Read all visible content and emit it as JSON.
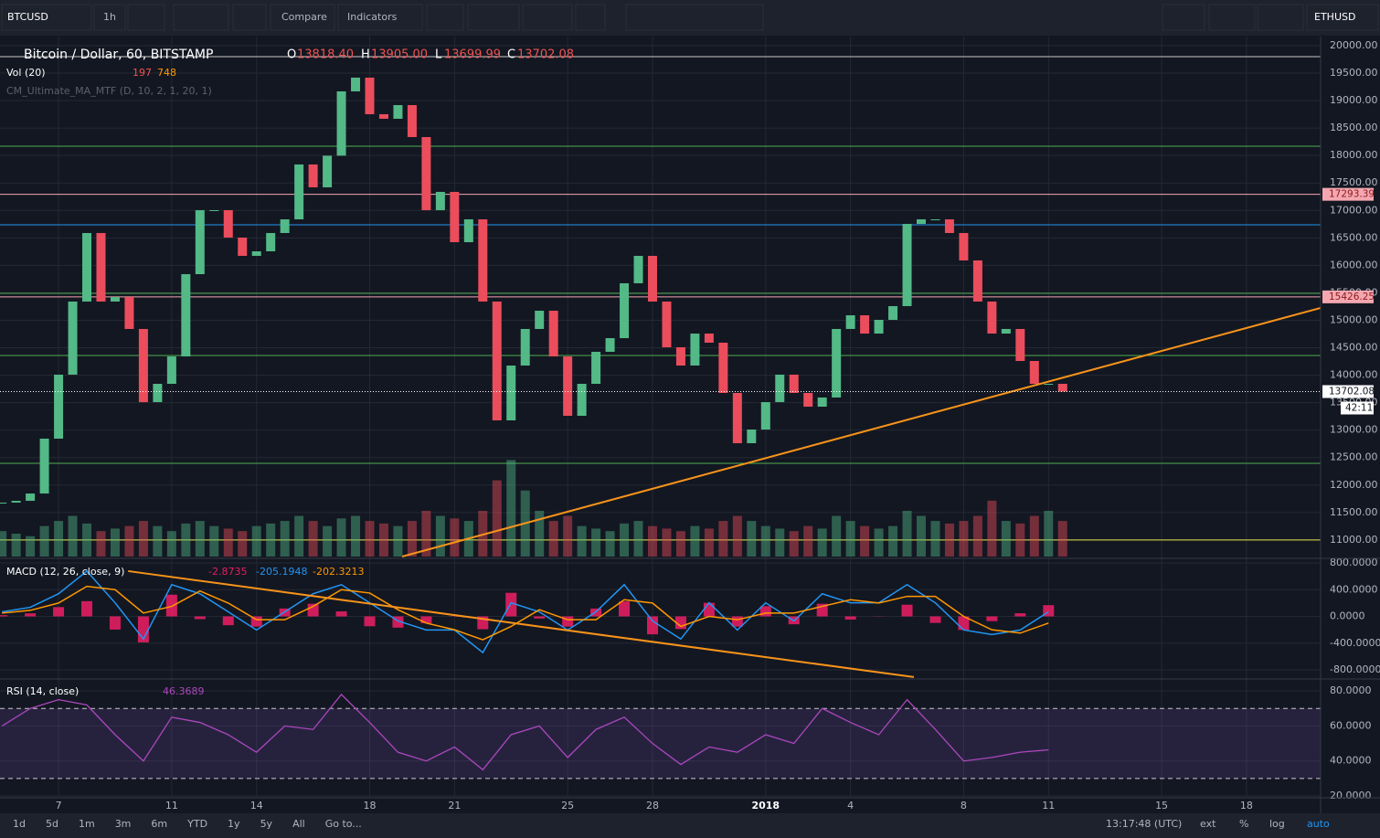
{
  "toolbar": {
    "symbol": "BTCUSD",
    "interval": "1h",
    "compare": "Compare",
    "indicators": "Indicators",
    "symbol2": "ETHUSD"
  },
  "legend": {
    "title": "Bitcoin / Dollar, 60, BITSTAMP",
    "o_key": "O",
    "o": "13818.40",
    "h_key": "H",
    "h": "13905.00",
    "l_key": "L",
    "l": "13699.99",
    "c_key": "C",
    "c": "13702.08",
    "vol": "Vol (20)",
    "vol_a": "197",
    "vol_b": "748",
    "ma": "CM_Ultimate_MA_MTF (D, 10, 2, 1, 20, 1)"
  },
  "chart_data": [
    {
      "type": "candlestick",
      "up_color": "#53b987",
      "down_color": "#eb4d5c",
      "t": [
        4,
        4.5,
        5,
        5.5,
        6,
        6.5,
        7,
        7.5,
        8,
        8.5,
        9,
        9.5,
        10,
        10.5,
        11,
        11.5,
        12,
        12.5,
        13,
        13.5,
        14,
        14.5,
        15,
        15.5,
        16,
        16.5,
        17,
        17.5,
        18,
        18.5,
        19,
        19.5,
        20,
        20.5,
        21,
        21.5,
        22,
        22.5,
        23,
        23.5,
        24,
        24.5,
        25,
        25.5,
        26,
        26.5,
        27,
        27.5,
        28,
        28.5,
        29,
        29.5,
        30,
        30.5,
        31,
        31.5,
        32,
        32.5,
        33,
        33.5,
        34,
        34.5,
        35,
        35.5,
        36,
        36.5,
        37,
        37.5,
        38,
        38.5,
        39,
        39.5,
        40,
        40.5,
        41,
        41.5
      ],
      "close": [
        11680,
        11713,
        11846,
        12845,
        14010,
        15341,
        16589,
        15341,
        15424,
        14842,
        13510,
        13843,
        14342,
        15840,
        17005,
        17005,
        16506,
        16173,
        16256,
        16589,
        16838,
        17837,
        17421,
        17997,
        19168,
        19418,
        18752,
        18669,
        18918,
        18336,
        17005,
        17338,
        16422,
        16838,
        15341,
        13178,
        14176,
        14842,
        15174,
        14342,
        13261,
        13843,
        14426,
        14675,
        15674,
        16173,
        15341,
        14509,
        14176,
        14758,
        14592,
        13677,
        12762,
        13011,
        13510,
        14010,
        13677,
        13427,
        13594,
        14842,
        15091,
        14758,
        15008,
        15258,
        16755,
        16838,
        16838,
        16589,
        16090,
        15341,
        14758,
        14842,
        14259,
        13843,
        13843,
        13702.08
      ],
      "volume": [
        500,
        450,
        400,
        600,
        700,
        800,
        650,
        500,
        550,
        600,
        700,
        600,
        500,
        650,
        700,
        600,
        550,
        500,
        600,
        650,
        700,
        800,
        700,
        600,
        750,
        800,
        700,
        650,
        600,
        700,
        900,
        800,
        750,
        700,
        900,
        1500,
        1900,
        1300,
        900,
        700,
        800,
        600,
        550,
        500,
        650,
        700,
        600,
        550,
        500,
        600,
        550,
        700,
        800,
        700,
        600,
        550,
        500,
        600,
        550,
        800,
        700,
        600,
        550,
        600,
        900,
        800,
        700,
        650,
        700,
        800,
        1100,
        700,
        650,
        800,
        900,
        700
      ],
      "vol_lim": [
        0,
        2500
      ],
      "ylim": [
        10682,
        20166
      ],
      "xlim": [
        3.93,
        50.62
      ],
      "yticks": [
        {
          "value": 11000,
          "label": "11000.00"
        },
        {
          "value": 11500,
          "label": "11500.00"
        },
        {
          "value": 12000,
          "label": "12000.00"
        },
        {
          "value": 12500,
          "label": "12500.00"
        },
        {
          "value": 13000,
          "label": "13000.00"
        },
        {
          "value": 13500,
          "label": "13500.00"
        },
        {
          "value": 14000,
          "label": "14000.00"
        },
        {
          "value": 14500,
          "label": "14500.00"
        },
        {
          "value": 15000,
          "label": "15000.00"
        },
        {
          "value": 15500,
          "label": "15500.00"
        },
        {
          "value": 16000,
          "label": "16000.00"
        },
        {
          "value": 16500,
          "label": "16500.00"
        },
        {
          "value": 17000,
          "label": "17000.00"
        },
        {
          "value": 17500,
          "label": "17500.00"
        },
        {
          "value": 18000,
          "label": "18000.00"
        },
        {
          "value": 18500,
          "label": "18500.00"
        },
        {
          "value": 19000,
          "label": "19000.00"
        },
        {
          "value": 19500,
          "label": "19500.00"
        },
        {
          "value": 20000,
          "label": "20000.00"
        }
      ],
      "xticks": [
        {
          "value": 6,
          "label": "7"
        },
        {
          "value": 10,
          "label": "11"
        },
        {
          "value": 13,
          "label": "14"
        },
        {
          "value": 17,
          "label": "18"
        },
        {
          "value": 20,
          "label": "21"
        },
        {
          "value": 24,
          "label": "25"
        },
        {
          "value": 27,
          "label": "28"
        },
        {
          "value": 31,
          "label": "2018"
        },
        {
          "value": 34,
          "label": "4"
        },
        {
          "value": 38,
          "label": "8"
        },
        {
          "value": 41,
          "label": "11"
        },
        {
          "value": 45,
          "label": "15"
        },
        {
          "value": 48,
          "label": "18"
        }
      ],
      "levels": [
        {
          "value": 19800,
          "color": "#c8c8c8"
        },
        {
          "value": 18170,
          "color": "#4caf50"
        },
        {
          "value": 16739,
          "color": "#2196f3"
        },
        {
          "value": 15491,
          "color": "#4caf50"
        },
        {
          "value": 14359,
          "color": "#4caf50"
        },
        {
          "value": 12396,
          "color": "#4caf50"
        },
        {
          "value": 11000,
          "color": "#e6e64d"
        }
      ],
      "marked_levels": [
        {
          "value": 17293.39,
          "color": "#f4a7b0"
        },
        {
          "value": 15426.25,
          "color": "#f4a7b0"
        }
      ],
      "trend": {
        "t": [
          18.15,
          50.62
        ],
        "values": [
          10699,
          15225
        ],
        "color": "#f7931a"
      },
      "last": {
        "value": 13702.08,
        "countdown": "42:11"
      }
    },
    {
      "type": "macd",
      "title": "MACD (12, 26, close, 9)",
      "readouts": [
        "-2.8735",
        "-205.1948",
        "-202.3213"
      ],
      "t": [
        4,
        5,
        6,
        7,
        8,
        9,
        10,
        11,
        12,
        13,
        14,
        15,
        16,
        17,
        18,
        19,
        20,
        21,
        22,
        23,
        24,
        25,
        26,
        27,
        28,
        29,
        30,
        31,
        32,
        33,
        34,
        35,
        36,
        37,
        38,
        39,
        40,
        41
      ],
      "macd": [
        68,
        136,
        339,
        678,
        203,
        -339,
        475,
        339,
        68,
        -203,
        68,
        339,
        475,
        203,
        -68,
        -203,
        -203,
        -542,
        203,
        68,
        -203,
        68,
        475,
        -68,
        -339,
        203,
        -203,
        203,
        -68,
        339,
        203,
        203,
        475,
        203,
        -203,
        -271,
        -203,
        68
      ],
      "signal": [
        50,
        90,
        200,
        450,
        400,
        50,
        150,
        380,
        200,
        -50,
        -50,
        150,
        400,
        350,
        100,
        -100,
        -200,
        -350,
        -150,
        100,
        -50,
        -50,
        250,
        200,
        -150,
        0,
        -50,
        50,
        50,
        150,
        250,
        200,
        300,
        300,
        0,
        -200,
        -250,
        -100
      ],
      "macd_color": "#2196f3",
      "signal_color": "#ff9800",
      "hist_color": "#ff1f6b",
      "ylim": [
        -923,
        855
      ],
      "yticks": [
        {
          "value": 800,
          "label": "800.0000"
        },
        {
          "value": 400,
          "label": "400.0000"
        },
        {
          "value": 0,
          "label": "0.0000"
        },
        {
          "value": -400,
          "label": "-400.0000"
        },
        {
          "value": -800,
          "label": "-800.0000"
        }
      ],
      "trend": {
        "t": [
          8.46,
          36.24
        ],
        "values": [
          678,
          -908
        ],
        "color": "#f7931a"
      }
    },
    {
      "type": "rsi",
      "title": "RSI (14, close)",
      "readout": "46.3689",
      "color": "#ab47bc",
      "t": [
        4,
        5,
        6,
        7,
        8,
        9,
        10,
        11,
        12,
        13,
        14,
        15,
        16,
        17,
        18,
        19,
        20,
        21,
        22,
        23,
        24,
        25,
        26,
        27,
        28,
        29,
        30,
        31,
        32,
        33,
        34,
        35,
        36,
        37,
        38,
        39,
        40,
        41
      ],
      "values": [
        60,
        70,
        75,
        72,
        55,
        40,
        65,
        62,
        55,
        45,
        60,
        58,
        78,
        62,
        45,
        40,
        48,
        35,
        55,
        60,
        42,
        58,
        65,
        50,
        38,
        48,
        45,
        55,
        50,
        70,
        62,
        55,
        75,
        58,
        40,
        42,
        45,
        46.37
      ],
      "ylim": [
        19.5,
        86.3
      ],
      "yticks": [
        {
          "value": 80,
          "label": "80.0000"
        },
        {
          "value": 60,
          "label": "60.0000"
        },
        {
          "value": 40,
          "label": "40.0000"
        },
        {
          "value": 20,
          "label": "20.0000"
        }
      ],
      "bands": [
        30,
        70
      ]
    }
  ],
  "bottom": {
    "ranges": [
      "1d",
      "5d",
      "1m",
      "3m",
      "6m",
      "YTD",
      "1y",
      "5y",
      "All",
      "Go to..."
    ],
    "clock": "13:17:48 (UTC)",
    "toggles": [
      "ext",
      "%",
      "log",
      "auto"
    ]
  }
}
